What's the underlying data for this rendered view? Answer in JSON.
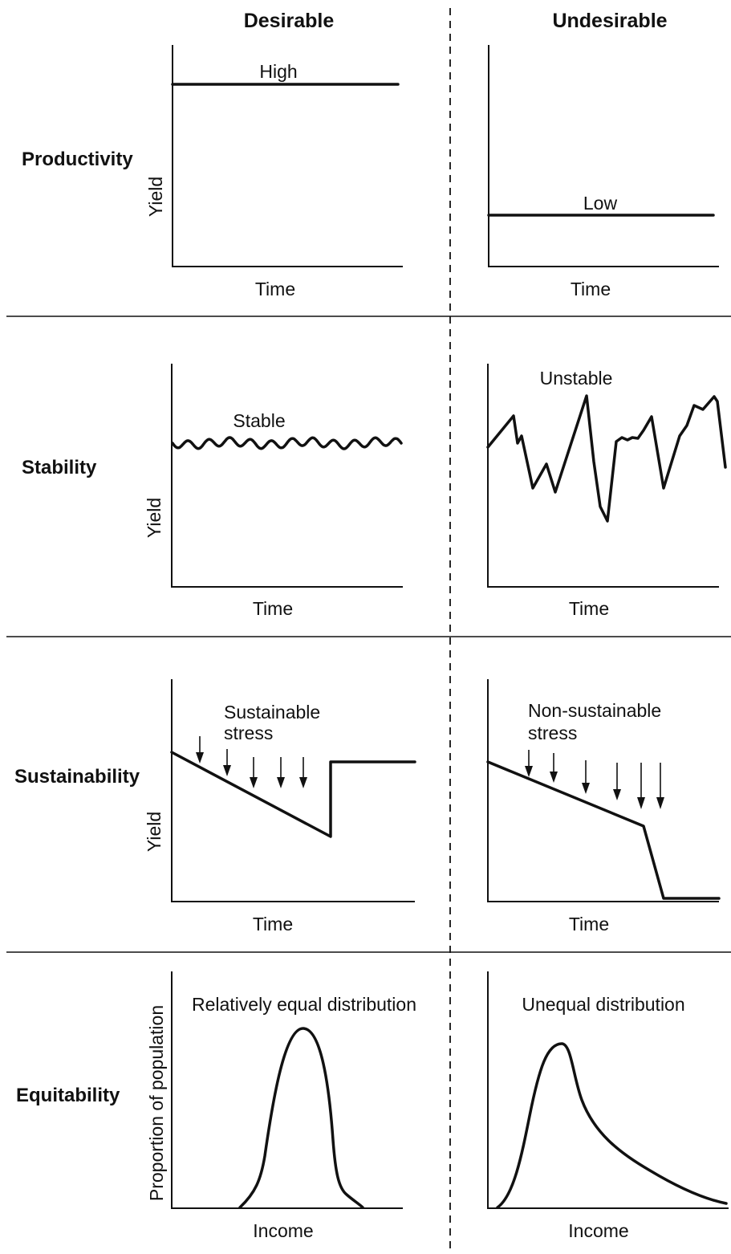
{
  "headers": {
    "desirable": "Desirable",
    "undesirable": "Undesirable"
  },
  "rows": [
    {
      "label": "Productivity",
      "y_label": "Yield",
      "x_label": "Time",
      "desirable_curve_label": "High",
      "undesirable_curve_label": "Low"
    },
    {
      "label": "Stability",
      "y_label": "Yield",
      "x_label": "Time",
      "desirable_curve_label": "Stable",
      "undesirable_curve_label": "Unstable"
    },
    {
      "label": "Sustainability",
      "y_label": "Yield",
      "x_label": "Time",
      "desirable_curve_label_line1": "Sustainable",
      "desirable_curve_label_line2": "stress",
      "undesirable_curve_label_line1": "Non-sustainable",
      "undesirable_curve_label_line2": "stress"
    },
    {
      "label": "Equitability",
      "y_label": "Proportion of population",
      "x_label": "Income",
      "desirable_curve_label": "Relatively equal distribution",
      "undesirable_curve_label": "Unequal distribution"
    }
  ]
}
